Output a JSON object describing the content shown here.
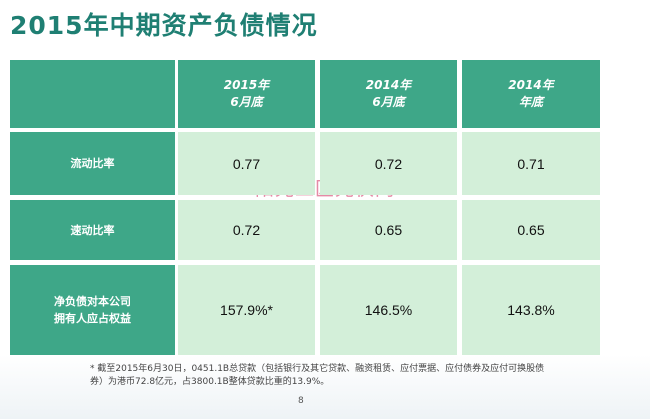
{
  "header": {
    "title": "2015年中期资产负债情况"
  },
  "table": {
    "columns": [
      [
        "2015年",
        "6月底"
      ],
      [
        "2014年",
        "6月底"
      ],
      [
        "2014年",
        "年底"
      ]
    ],
    "rows": [
      {
        "label": [
          "流动比率"
        ],
        "values": [
          "0.77",
          "0.72",
          "0.71"
        ]
      },
      {
        "label": [
          "速动比率"
        ],
        "values": [
          "0.72",
          "0.65",
          "0.65"
        ]
      },
      {
        "label": [
          "净负债对本公司",
          "拥有人应占权益"
        ],
        "values": [
          "157.9%*",
          "146.5%",
          "143.8%"
        ]
      }
    ]
  },
  "watermark": "阳光工匠光伏网",
  "footnote": "* 截至2015年6月30日，0451.1B总贷款（包括银行及其它贷款、融资租赁、应付票据、应付债券及应付可换股债券）为港币72.8亿元，占3800.1B整体贷款比重的13.9%。",
  "page_number": "8"
}
